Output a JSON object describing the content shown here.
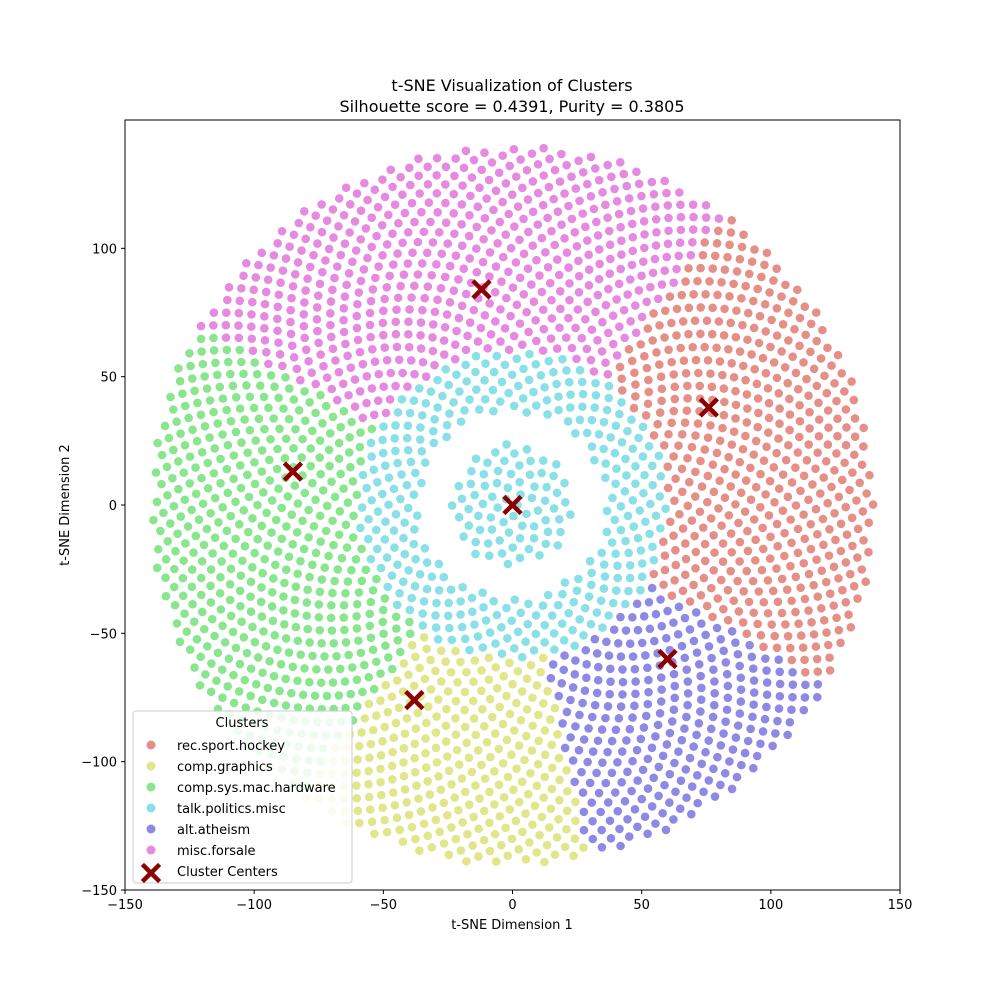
{
  "chart_data": {
    "type": "scatter",
    "title": "t-SNE Visualization of Clusters",
    "subtitle": "Silhouette score = 0.4391, Purity = 0.3805",
    "xlabel": "t-SNE Dimension 1",
    "ylabel": "t-SNE Dimension 2",
    "xlim": [
      -150,
      150
    ],
    "ylim": [
      -150,
      150
    ],
    "xticks": [
      -150,
      -100,
      -50,
      0,
      50,
      100,
      150
    ],
    "yticks": [
      -150,
      -100,
      -50,
      0,
      50,
      100
    ],
    "grid": false,
    "legend": {
      "title": "Clusters",
      "placement": "lower-left"
    },
    "series": [
      {
        "name": "rec.sport.hockey",
        "color": "#db5f57",
        "angle_range_deg": [
          -30,
          54
        ],
        "r_range": [
          0,
          140
        ]
      },
      {
        "name": "comp.graphics",
        "color": "#d3db57",
        "angle_range_deg": [
          234,
          282
        ],
        "r_range": [
          0,
          140
        ]
      },
      {
        "name": "comp.sys.mac.hardware",
        "color": "#57db5f",
        "angle_range_deg": [
          150,
          234
        ],
        "r_range": [
          0,
          140
        ]
      },
      {
        "name": "talk.politics.misc",
        "color": "#57d3db",
        "angle_range_deg": [
          0,
          360
        ],
        "r_range": [
          0,
          60
        ]
      },
      {
        "name": "alt.atheism",
        "color": "#5f57db",
        "angle_range_deg": [
          282,
          330
        ],
        "r_range": [
          0,
          140
        ]
      },
      {
        "name": "misc.forsale",
        "color": "#db57d3",
        "angle_range_deg": [
          54,
          150
        ],
        "r_range": [
          0,
          140
        ]
      }
    ],
    "centers": {
      "name": "Cluster Centers",
      "color": "#8b0000",
      "points": [
        [
          76,
          38
        ],
        [
          -38,
          -76
        ],
        [
          -85,
          13
        ],
        [
          0,
          0
        ],
        [
          60,
          -60
        ],
        [
          -12,
          84
        ]
      ]
    }
  }
}
